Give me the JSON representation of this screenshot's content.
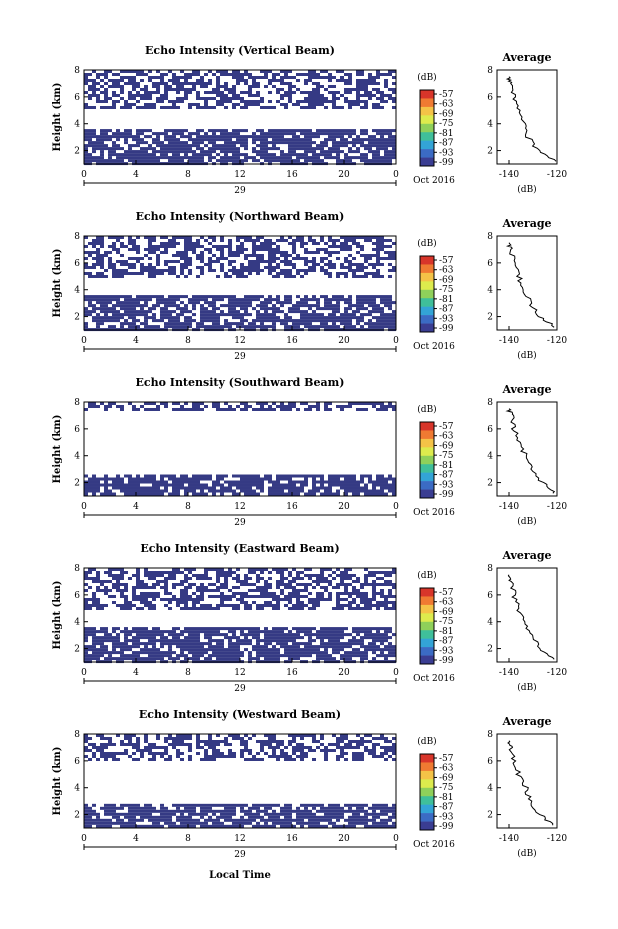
{
  "chart_data": [
    {
      "type": "heatmap",
      "title": "Echo Intensity (Vertical Beam)",
      "ylabel": "Height (km)",
      "xlim": [
        0,
        24
      ],
      "ylim": [
        1,
        8
      ],
      "x_ticks": [
        "0",
        "4",
        "8",
        "12",
        "16",
        "20",
        "0"
      ],
      "y_ticks": [
        "2",
        "4",
        "6",
        "8"
      ],
      "date_day": "29",
      "date_label": "Oct 2016",
      "colorbar_unit": "(dB)",
      "colorbar_ticks": [
        "-57",
        "-63",
        "-69",
        "-75",
        "-81",
        "-87",
        "-93",
        "-99"
      ],
      "echo_layers_km": [
        [
          1.0,
          3.6
        ],
        [
          5.2,
          8.0
        ]
      ],
      "average_profile": {
        "title": "Average",
        "xlabel": "(dB)",
        "x_ticks": [
          "-140",
          "-120"
        ],
        "y_ticks": [
          "2",
          "4",
          "6",
          "8"
        ],
        "height_km": [
          1.2,
          2.0,
          3.0,
          4.0,
          5.0,
          6.0,
          7.0,
          7.5
        ],
        "echo_db": [
          -120,
          -128,
          -132,
          -134,
          -136,
          -138,
          -139,
          -140
        ]
      }
    },
    {
      "type": "heatmap",
      "title": "Echo Intensity (Northward Beam)",
      "ylabel": "Height (km)",
      "xlim": [
        0,
        24
      ],
      "ylim": [
        1,
        8
      ],
      "x_ticks": [
        "0",
        "4",
        "8",
        "12",
        "16",
        "20",
        "0"
      ],
      "y_ticks": [
        "2",
        "4",
        "6",
        "8"
      ],
      "date_day": "29",
      "date_label": "Oct 2016",
      "colorbar_unit": "(dB)",
      "colorbar_ticks": [
        "-57",
        "-63",
        "-69",
        "-75",
        "-81",
        "-87",
        "-93",
        "-99"
      ],
      "echo_layers_km": [
        [
          1.0,
          3.6
        ],
        [
          5.0,
          8.0
        ]
      ],
      "average_profile": {
        "title": "Average",
        "xlabel": "(dB)",
        "x_ticks": [
          "-140",
          "-120"
        ],
        "y_ticks": [
          "2",
          "4",
          "6",
          "8"
        ],
        "height_km": [
          1.2,
          2.0,
          3.0,
          4.0,
          5.0,
          6.0,
          7.0,
          7.5
        ],
        "echo_db": [
          -121,
          -127,
          -131,
          -134,
          -136,
          -138,
          -139,
          -140
        ]
      }
    },
    {
      "type": "heatmap",
      "title": "Echo Intensity (Southward Beam)",
      "ylabel": "Height (km)",
      "xlim": [
        0,
        24
      ],
      "ylim": [
        1,
        8
      ],
      "x_ticks": [
        "0",
        "4",
        "8",
        "12",
        "16",
        "20",
        "0"
      ],
      "y_ticks": [
        "2",
        "4",
        "6",
        "8"
      ],
      "date_day": "29",
      "date_label": "Oct 2016",
      "colorbar_unit": "(dB)",
      "colorbar_ticks": [
        "-57",
        "-63",
        "-69",
        "-75",
        "-81",
        "-87",
        "-93",
        "-99"
      ],
      "echo_layers_km": [
        [
          1.0,
          2.6
        ],
        [
          7.3,
          8.0
        ]
      ],
      "average_profile": {
        "title": "Average",
        "xlabel": "(dB)",
        "x_ticks": [
          "-140",
          "-120"
        ],
        "y_ticks": [
          "2",
          "4",
          "6",
          "8"
        ],
        "height_km": [
          1.2,
          2.0,
          3.0,
          4.0,
          5.0,
          6.0,
          7.0,
          7.5
        ],
        "echo_db": [
          -121,
          -126,
          -131,
          -133,
          -136,
          -138,
          -139,
          -140
        ]
      }
    },
    {
      "type": "heatmap",
      "title": "Echo Intensity (Eastward Beam)",
      "ylabel": "Height (km)",
      "xlim": [
        0,
        24
      ],
      "ylim": [
        1,
        8
      ],
      "x_ticks": [
        "0",
        "4",
        "8",
        "12",
        "16",
        "20",
        "0"
      ],
      "y_ticks": [
        "2",
        "4",
        "6",
        "8"
      ],
      "date_day": "29",
      "date_label": "Oct 2016",
      "colorbar_unit": "(dB)",
      "colorbar_ticks": [
        "-57",
        "-63",
        "-69",
        "-75",
        "-81",
        "-87",
        "-93",
        "-99"
      ],
      "echo_layers_km": [
        [
          1.0,
          3.6
        ],
        [
          5.0,
          8.0
        ]
      ],
      "average_profile": {
        "title": "Average",
        "xlabel": "(dB)",
        "x_ticks": [
          "-140",
          "-120"
        ],
        "y_ticks": [
          "2",
          "4",
          "6",
          "8"
        ],
        "height_km": [
          1.2,
          2.0,
          3.0,
          4.0,
          5.0,
          6.0,
          7.0,
          7.5
        ],
        "echo_db": [
          -121,
          -127,
          -131,
          -134,
          -136,
          -138,
          -139,
          -140
        ]
      }
    },
    {
      "type": "heatmap",
      "title": "Echo Intensity (Westward Beam)",
      "ylabel": "Height (km)",
      "xlim": [
        0,
        24
      ],
      "ylim": [
        1,
        8
      ],
      "x_ticks": [
        "0",
        "4",
        "8",
        "12",
        "16",
        "20",
        "0"
      ],
      "y_ticks": [
        "2",
        "4",
        "6",
        "8"
      ],
      "date_day": "29",
      "date_label": "Oct 2016",
      "colorbar_unit": "(dB)",
      "colorbar_ticks": [
        "-57",
        "-63",
        "-69",
        "-75",
        "-81",
        "-87",
        "-93",
        "-99"
      ],
      "echo_layers_km": [
        [
          1.0,
          2.8
        ],
        [
          6.0,
          8.0
        ]
      ],
      "average_profile": {
        "title": "Average",
        "xlabel": "(dB)",
        "x_ticks": [
          "-140",
          "-120"
        ],
        "y_ticks": [
          "2",
          "4",
          "6",
          "8"
        ],
        "height_km": [
          1.2,
          2.0,
          3.0,
          4.0,
          5.0,
          6.0,
          7.0,
          7.5
        ],
        "echo_db": [
          -121,
          -127,
          -131,
          -133,
          -136,
          -138,
          -139,
          -140
        ]
      }
    }
  ],
  "footer": {
    "xlabel": "Local Time"
  },
  "colors": {
    "echo_fill": "#353a84",
    "colorbar": [
      "#d8352a",
      "#ef7a32",
      "#f4c347",
      "#ddeb4d",
      "#8fd05a",
      "#3fbf9a",
      "#33a4d6",
      "#3b6bc4",
      "#3a3d92"
    ]
  }
}
